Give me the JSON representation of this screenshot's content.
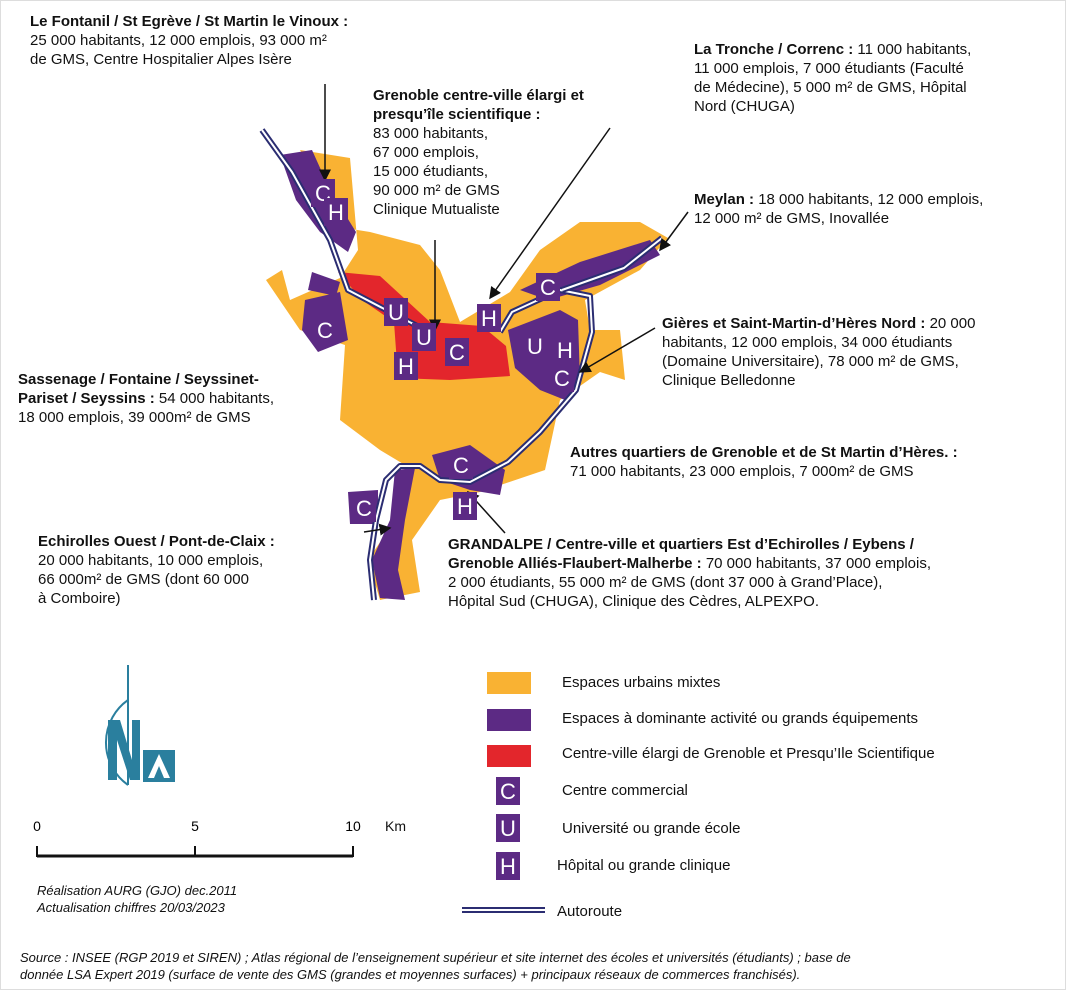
{
  "annotations": [
    {
      "title": "Le Fontanil / St Egrève / St Martin le Vinoux :",
      "text": "25 000 habitants, 12 000 emplois, 93 000 m²\nde GMS, Centre Hospitalier Alpes Isère"
    },
    {
      "title": "Grenoble centre-ville élargi et\npresqu’île scientifique :",
      "text": "83 000 habitants,\n67 000 emplois,\n15 000 étudiants,\n90 000 m² de GMS\nClinique Mutualiste"
    },
    {
      "title": "La Tronche / Correnc :",
      "text": "11 000 habitants,\n11 000 emplois, 7 000 étudiants (Faculté\nde Médecine), 5 000 m² de GMS, Hôpital\nNord (CHUGA)"
    },
    {
      "title": "Meylan :",
      "text": "18 000 habitants, 12 000 emplois,\n12 000 m² de GMS, Inovallée"
    },
    {
      "title": "Gières et Saint-Martin-d’Hères Nord :",
      "text": "20 000\nhabitants, 12 000 emplois, 34 000 étudiants\n(Domaine Universitaire), 78 000 m² de GMS,\nClinique Belledonne"
    },
    {
      "title": "Sassenage / Fontaine / Seyssinet-\nPariset / Seyssins :",
      "text": "54 000 habitants,\n18 000 emplois, 39 000m² de GMS"
    },
    {
      "title": "Autres quartiers de Grenoble et de St Martin d’Hères. :",
      "text": "71 000 habitants, 23 000 emplois, 7 000m² de GMS"
    },
    {
      "title": "Echirolles Ouest / Pont-de-Claix :",
      "text": "20 000 habitants, 10 000 emplois,\n66 000m² de GMS (dont 60 000\nà Comboire)"
    },
    {
      "title": "GRANDALPE / Centre-ville et quartiers Est d’Echirolles / Eybens /\nGrenoble Alliés-Flaubert-Malherbe :",
      "text": "70 000 habitants, 37 000 emplois,\n2 000 étudiants, 55 000 m² de GMS (dont 37 000 à Grand’Place),\nHôpital Sud (CHUGA), Clinique des Cèdres, ALPEXPO."
    }
  ],
  "map_markers": [
    "C",
    "H",
    "C",
    "U",
    "U",
    "H",
    "C",
    "H",
    "C",
    "U",
    "H",
    "C",
    "C",
    "H",
    "C"
  ],
  "legend": [
    {
      "label": "Espaces urbains mixtes"
    },
    {
      "label": "Espaces à dominante activité ou grands équipements"
    },
    {
      "label": "Centre-ville élargi de Grenoble et Presqu’Ile Scientifique"
    },
    {
      "symbol": "C",
      "label": "Centre commercial"
    },
    {
      "symbol": "U",
      "label": "Université ou grande école"
    },
    {
      "symbol": "H",
      "label": "Hôpital ou grande clinique"
    },
    {
      "label": "Autoroute"
    }
  ],
  "scale": {
    "ticks": [
      0,
      5,
      10
    ],
    "unit": "Km"
  },
  "credits": [
    "Réalisation AURG (GJO) dec.2011",
    "Actualisation chiffres 20/03/2023"
  ],
  "source": "Source : INSEE (RGP 2019 et SIREN) ; Atlas régional de l’enseignement supérieur et site internet des écoles et universités  (étudiants) ; base de\ndonnée LSA Expert 2019 (surface de vente des GMS (grandes et moyennes surfaces) + principaux réseaux de commerces franchisés)."
}
